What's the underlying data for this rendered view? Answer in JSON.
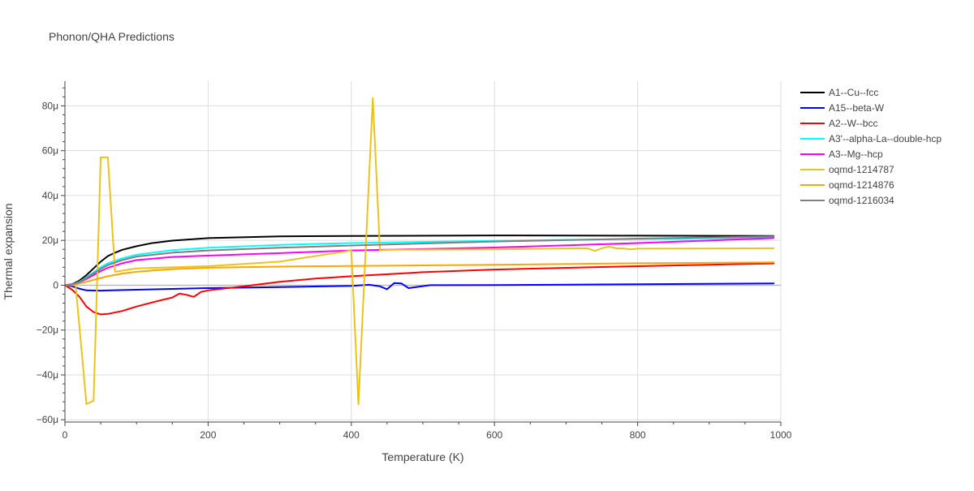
{
  "chart_data": {
    "type": "line",
    "title": "Phonon/QHA Predictions",
    "xlabel": "Temperature (K)",
    "ylabel": "Thermal expansion",
    "xlim": [
      0,
      1000
    ],
    "ylim": [
      -61,
      91
    ],
    "x_ticks": [
      0,
      200,
      400,
      600,
      800,
      1000
    ],
    "x_tick_labels": [
      "0",
      "200",
      "400",
      "600",
      "800",
      "1000"
    ],
    "y_ticks": [
      -60,
      -40,
      -20,
      0,
      20,
      40,
      60,
      80
    ],
    "y_tick_labels": [
      "−60μ",
      "−40μ",
      "−20μ",
      "0",
      "20μ",
      "40μ",
      "60μ",
      "80μ"
    ],
    "y_unit": "1e-6 /K",
    "grid": true,
    "legend_position": "right",
    "series": [
      {
        "name": "A1--Cu--fcc",
        "color": "#000000",
        "x": [
          0,
          10,
          20,
          30,
          40,
          50,
          60,
          70,
          80,
          100,
          120,
          150,
          200,
          300,
          400,
          600,
          800,
          990
        ],
        "y": [
          0,
          0.5,
          2,
          4.5,
          7.5,
          10.5,
          13,
          14.5,
          15.8,
          17.4,
          18.7,
          19.9,
          21,
          21.8,
          22,
          22.2,
          22.1,
          22
        ]
      },
      {
        "name": "A15--beta-W",
        "color": "#0000ff",
        "x": [
          0,
          10,
          20,
          30,
          50,
          100,
          200,
          300,
          400,
          425,
          440,
          450,
          460,
          470,
          480,
          510,
          600,
          800,
          990
        ],
        "y": [
          0,
          -0.5,
          -1.5,
          -2.3,
          -2.4,
          -2,
          -1.3,
          -0.8,
          -0.3,
          0.2,
          -0.5,
          -1.8,
          1,
          0.8,
          -1.3,
          0,
          0.1,
          0.4,
          0.8
        ]
      },
      {
        "name": "A2--W--bcc",
        "color": "#ff0000",
        "x": [
          0,
          10,
          20,
          30,
          40,
          50,
          60,
          80,
          100,
          130,
          150,
          160,
          170,
          180,
          190,
          200,
          250,
          300,
          350,
          400,
          500,
          600,
          800,
          990
        ],
        "y": [
          0,
          -2,
          -5,
          -9.5,
          -12,
          -13,
          -12.8,
          -11.5,
          -9.5,
          -7,
          -5.5,
          -3.7,
          -4.3,
          -5.2,
          -3,
          -2.3,
          -0.5,
          1.5,
          3,
          4,
          5.8,
          7,
          8.5,
          9.7
        ]
      },
      {
        "name": "A3'--alpha-La--double-hcp",
        "color": "#00ffff",
        "x": [
          0,
          10,
          20,
          30,
          40,
          50,
          60,
          80,
          100,
          150,
          200,
          300,
          400,
          600,
          800,
          990
        ],
        "y": [
          0,
          0.4,
          1.5,
          3.5,
          5.8,
          8,
          9.8,
          12,
          13.6,
          15.6,
          16.7,
          18,
          18.8,
          19.8,
          20.6,
          21.2
        ]
      },
      {
        "name": "A3--Mg--hcp",
        "color": "#ff00ff",
        "x": [
          0,
          10,
          20,
          30,
          40,
          50,
          60,
          80,
          100,
          150,
          200,
          300,
          400,
          600,
          800,
          990
        ],
        "y": [
          0,
          0.3,
          1.2,
          2.8,
          4.5,
          6.3,
          7.8,
          9.8,
          11.2,
          12.6,
          13.2,
          14.3,
          15.5,
          16.8,
          18.8,
          21
        ]
      },
      {
        "name": "oqmd-1214787",
        "color": "#ebc31c",
        "x": [
          0,
          15,
          30,
          40,
          50,
          60,
          70,
          100,
          200,
          300,
          400,
          410,
          430,
          440,
          450,
          600,
          730,
          740,
          750,
          760,
          770,
          780,
          790,
          800,
          990
        ],
        "y": [
          0,
          0,
          -53,
          -51.5,
          57,
          57,
          6,
          7.5,
          8.5,
          10.5,
          15.5,
          -53,
          83.5,
          15.5,
          15.8,
          16,
          16.5,
          15.3,
          16.5,
          17.2,
          16.5,
          16.4,
          16,
          16.3,
          16.5
        ]
      },
      {
        "name": "oqmd-1214876",
        "color": "#ffa500",
        "x": [
          0,
          10,
          20,
          30,
          40,
          50,
          60,
          80,
          100,
          130,
          150,
          200,
          300,
          400,
          600,
          800,
          990
        ],
        "y": [
          0,
          0.2,
          0.8,
          1.5,
          2.4,
          3.2,
          4,
          5.2,
          6,
          6.8,
          7.2,
          7.8,
          8.3,
          8.6,
          9.1,
          9.8,
          10.2
        ]
      },
      {
        "name": "oqmd-1216034",
        "color": "#808080",
        "x": [
          0,
          10,
          20,
          30,
          40,
          50,
          60,
          80,
          100,
          150,
          200,
          300,
          400,
          600,
          800,
          990
        ],
        "y": [
          0,
          0.4,
          1.3,
          3.2,
          5.3,
          7.3,
          9,
          11.2,
          12.8,
          14.5,
          15.5,
          16.7,
          17.7,
          19.5,
          20.8,
          21.8
        ]
      }
    ]
  }
}
